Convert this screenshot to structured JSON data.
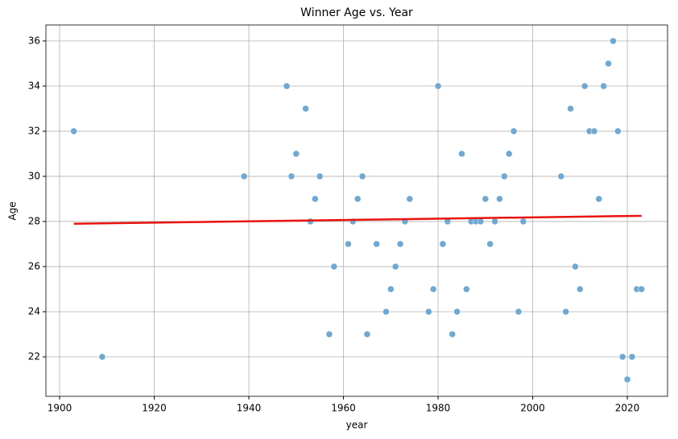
{
  "chart_data": {
    "type": "scatter",
    "title": "Winner Age vs. Year",
    "x_label": "year",
    "y_label": "Age",
    "x": [
      1903,
      1909,
      1939,
      1948,
      1949,
      1950,
      1952,
      1953,
      1954,
      1955,
      1957,
      1958,
      1961,
      1962,
      1963,
      1964,
      1965,
      1967,
      1969,
      1970,
      1971,
      1972,
      1973,
      1974,
      1978,
      1979,
      1980,
      1981,
      1982,
      1983,
      1984,
      1985,
      1986,
      1987,
      1988,
      1989,
      1990,
      1991,
      1992,
      1993,
      1994,
      1995,
      1996,
      1997,
      1998,
      2006,
      2007,
      2008,
      2009,
      2010,
      2011,
      2012,
      2013,
      2014,
      2015,
      2016,
      2017,
      2018,
      2019,
      2020,
      2021,
      2022,
      2023
    ],
    "values": [
      32,
      22,
      30,
      34,
      30,
      31,
      33,
      28,
      29,
      30,
      23,
      26,
      27,
      28,
      29,
      30,
      23,
      27,
      24,
      25,
      26,
      27,
      28,
      29,
      24,
      25,
      34,
      27,
      28,
      23,
      24,
      31,
      25,
      28,
      28,
      28,
      29,
      27,
      28,
      29,
      30,
      31,
      32,
      24,
      28,
      30,
      24,
      33,
      26,
      25,
      34,
      32,
      32,
      29,
      34,
      35,
      36,
      32,
      22,
      21,
      22,
      25,
      25
    ],
    "color": "#6fa8d2",
    "trend_line": {
      "x": [
        1903,
        2023
      ],
      "values": [
        27.9,
        28.25
      ],
      "color": "#e8130f"
    },
    "xlim": [
      1897.1,
      2028.5
    ],
    "ylim": [
      20.25,
      36.71
    ],
    "xticks": [
      1900,
      1920,
      1940,
      1960,
      1980,
      2000,
      2020
    ],
    "yticks": [
      22,
      24,
      26,
      28,
      30,
      32,
      34,
      36
    ],
    "grid": true
  }
}
